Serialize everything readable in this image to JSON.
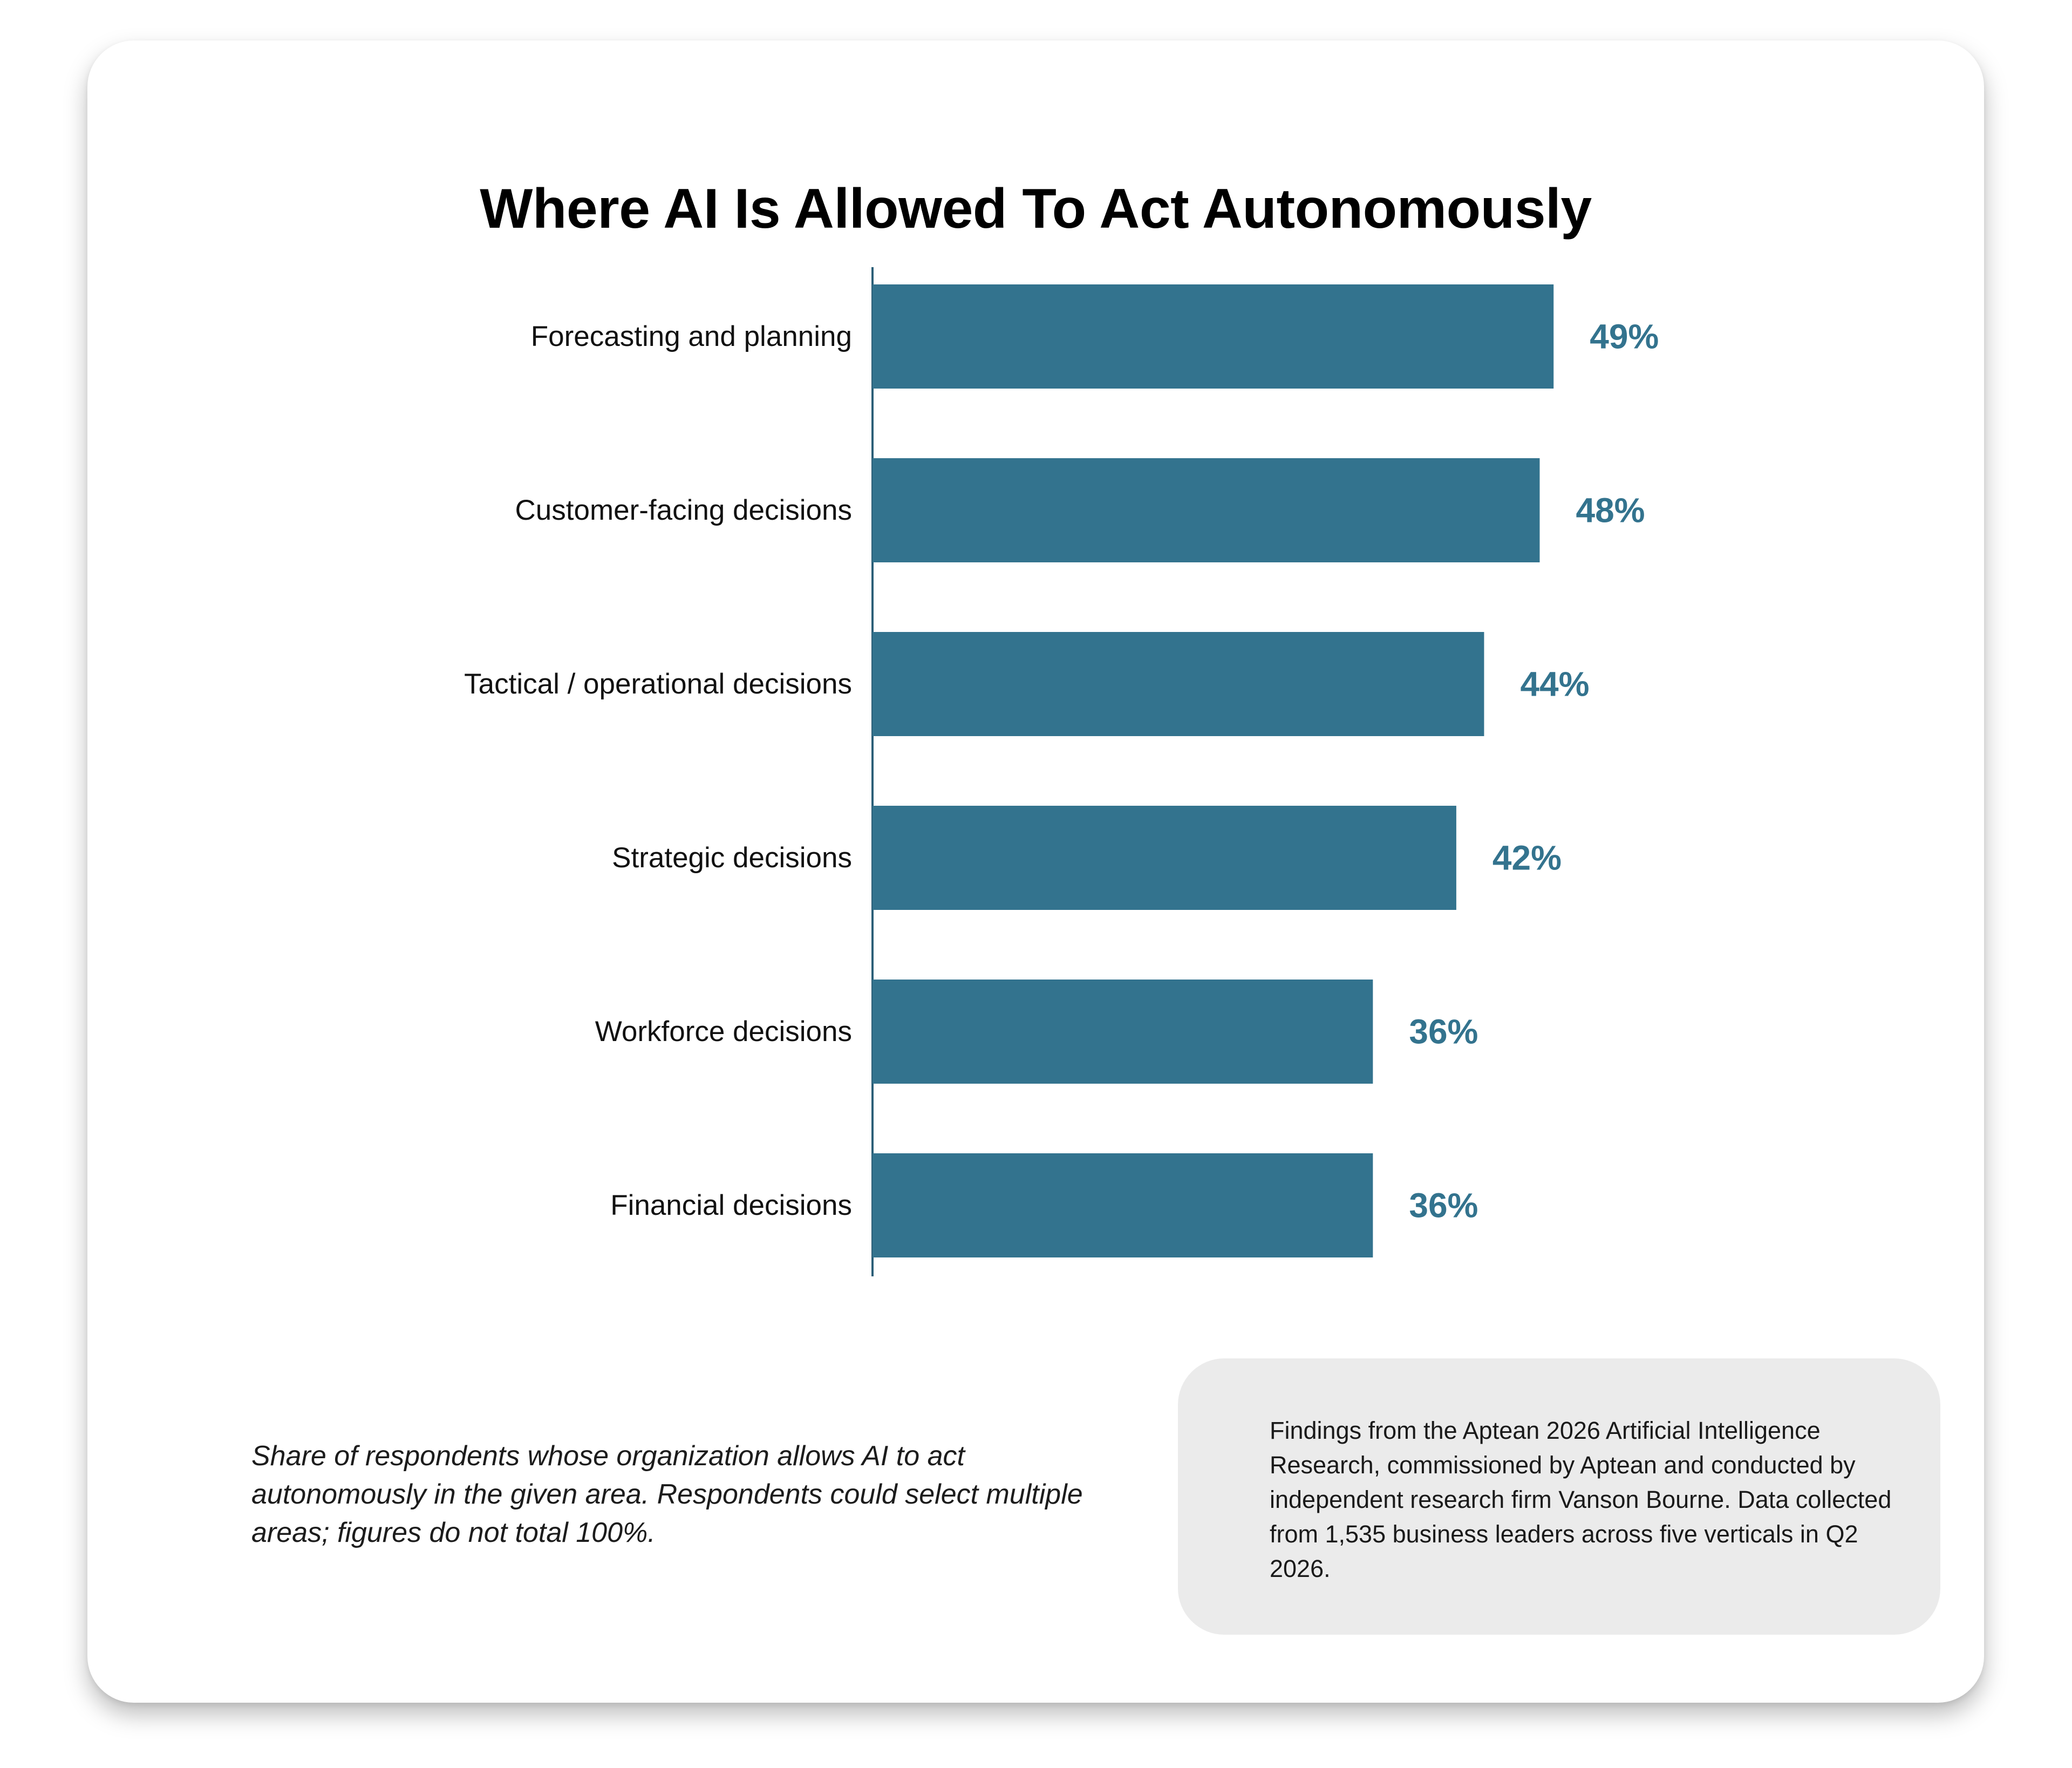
{
  "chart_data": {
    "type": "bar",
    "orientation": "horizontal",
    "title": "Where AI Is Allowed To Act Autonomously",
    "categories": [
      "Forecasting and planning",
      "Customer-facing decisions",
      "Tactical / operational decisions",
      "Strategic decisions",
      "Workforce decisions",
      "Financial decisions"
    ],
    "values": [
      49,
      48,
      44,
      42,
      36,
      36
    ],
    "value_labels": [
      "49%",
      "48%",
      "44%",
      "42%",
      "36%",
      "36%"
    ],
    "value_unit": "%",
    "xlim": [
      0,
      100
    ],
    "grid": false,
    "bar_color": "#33738e",
    "label_color": "#33738e"
  },
  "footnote": "Share of respondents whose organization allows AI to act autonomously in the given area. Respondents could select multiple areas; figures do not total 100%.",
  "source_note": "Findings from the Aptean 2026 Artificial Intelligence Research, commissioned by Aptean and conducted by independent research firm Vanson Bourne. Data collected from 1,535 business leaders across five verticals in Q2 2026."
}
